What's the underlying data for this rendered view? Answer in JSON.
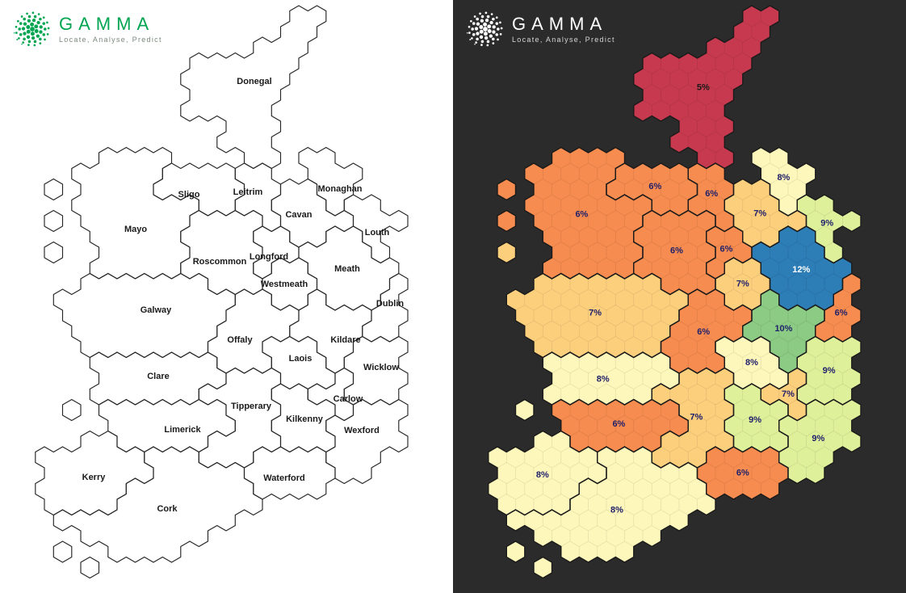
{
  "logo": {
    "brand": "GAMMA",
    "tagline": "Locate, Analyse, Predict"
  },
  "panels": {
    "left": {
      "background": "#ffffff",
      "brand_color": "#00a551",
      "tagline_color": "#7b8a7e",
      "dot_color": "#00a551",
      "outline_color": "#262626",
      "county_name_color": "#1a1a1a"
    },
    "right": {
      "background": "#2b2b2b",
      "brand_color": "#ffffff",
      "tagline_color": "#d6d6d6",
      "dot_color": "#ffffff",
      "outline_color": "#1b1b1b"
    }
  },
  "chart_data": {
    "type": "hex-cartogram-choropleth",
    "description_left_panel": "Hexagon tile map of Ireland with county name labels",
    "description_right_panel": "Same hexagon tile map coloured by percentage value per county",
    "unit": "%",
    "value_scale": [
      {
        "value": 5,
        "fill": "#c7394e",
        "text_color": "#1a1a1a"
      },
      {
        "value": 6,
        "fill": "#f68c4f",
        "text_color": "#21216b"
      },
      {
        "value": 7,
        "fill": "#fccf7d",
        "text_color": "#21216b"
      },
      {
        "value": 8,
        "fill": "#fdf7bb",
        "text_color": "#21216b"
      },
      {
        "value": 9,
        "fill": "#dff09b",
        "text_color": "#21216b"
      },
      {
        "value": 10,
        "fill": "#8bcb84",
        "text_color": "#21216b"
      },
      {
        "value": 12,
        "fill": "#2d7db7",
        "text_color": "#ffffff"
      }
    ],
    "counties": [
      {
        "name": "Donegal",
        "value": 5,
        "label": "5%"
      },
      {
        "name": "Sligo",
        "value": 6,
        "label": "6%"
      },
      {
        "name": "Leitrim",
        "value": 6,
        "label": "6%"
      },
      {
        "name": "Monaghan",
        "value": 8,
        "label": "8%"
      },
      {
        "name": "Cavan",
        "value": 7,
        "label": "7%"
      },
      {
        "name": "Louth",
        "value": 9,
        "label": "9%"
      },
      {
        "name": "Mayo",
        "value": 6,
        "label": "6%"
      },
      {
        "name": "Roscommon",
        "value": 6,
        "label": "6%"
      },
      {
        "name": "Longford",
        "value": 6,
        "label": "6%"
      },
      {
        "name": "Westmeath",
        "value": 7,
        "label": "7%"
      },
      {
        "name": "Meath",
        "value": 12,
        "label": "12%"
      },
      {
        "name": "Dublin",
        "value": 6,
        "label": "6%"
      },
      {
        "name": "Galway",
        "value": 7,
        "label": "7%"
      },
      {
        "name": "Offaly",
        "value": 6,
        "label": "6%"
      },
      {
        "name": "Kildare",
        "value": 10,
        "label": "10%"
      },
      {
        "name": "Laois",
        "value": 8,
        "label": "8%"
      },
      {
        "name": "Wicklow",
        "value": 9,
        "label": "9%"
      },
      {
        "name": "Clare",
        "value": 8,
        "label": "8%"
      },
      {
        "name": "Carlow",
        "value": 7,
        "label": "7%"
      },
      {
        "name": "Tipperary",
        "value": 7,
        "label": "7%"
      },
      {
        "name": "Kilkenny",
        "value": 9,
        "label": "9%"
      },
      {
        "name": "Wexford",
        "value": 9,
        "label": "9%"
      },
      {
        "name": "Limerick",
        "value": 6,
        "label": "6%"
      },
      {
        "name": "Waterford",
        "value": 6,
        "label": "6%"
      },
      {
        "name": "Kerry",
        "value": 8,
        "label": "8%"
      },
      {
        "name": "Cork",
        "value": 8,
        "label": "8%"
      }
    ]
  }
}
